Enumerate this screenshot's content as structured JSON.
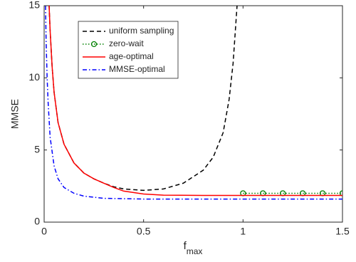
{
  "chart_data": {
    "type": "line",
    "xlabel": "f",
    "xlabel_subscript": "max",
    "ylabel": "MMSE",
    "xlim": [
      0,
      1.5
    ],
    "xticks": [
      0,
      0.5,
      1,
      1.5
    ],
    "ylim": [
      0,
      15
    ],
    "yticks": [
      0,
      5,
      10,
      15
    ],
    "legend": "upper left",
    "series": [
      {
        "name": "uniform sampling",
        "color": "#000000",
        "style": "dashed",
        "x": [
          0.025,
          0.03,
          0.04,
          0.05,
          0.07,
          0.1,
          0.15,
          0.2,
          0.25,
          0.3,
          0.35,
          0.4,
          0.5,
          0.6,
          0.7,
          0.8,
          0.85,
          0.9,
          0.93,
          0.95,
          0.97
        ],
        "values": [
          15,
          13.3,
          10.8,
          9.0,
          6.9,
          5.4,
          4.1,
          3.4,
          3.0,
          2.7,
          2.45,
          2.3,
          2.2,
          2.3,
          2.7,
          3.6,
          4.5,
          6.2,
          8.5,
          11,
          15
        ]
      },
      {
        "name": "zero-wait",
        "color": "#008000",
        "style": "dotted",
        "marker": "circle",
        "x": [
          1,
          1.1,
          1.2,
          1.3,
          1.4,
          1.5
        ],
        "values": [
          2,
          2,
          2,
          2,
          2,
          2
        ]
      },
      {
        "name": "age-optimal",
        "color": "#ff0000",
        "style": "solid",
        "x": [
          0.025,
          0.03,
          0.04,
          0.05,
          0.07,
          0.1,
          0.15,
          0.2,
          0.25,
          0.3,
          0.35,
          0.4,
          0.5,
          0.6,
          0.8,
          1,
          1.2,
          1.5
        ],
        "values": [
          15,
          13.3,
          10.8,
          9.0,
          6.9,
          5.4,
          4.1,
          3.4,
          3.0,
          2.7,
          2.4,
          2.15,
          1.95,
          1.87,
          1.85,
          1.85,
          1.85,
          1.85
        ]
      },
      {
        "name": "MMSE-optimal",
        "color": "#0000ff",
        "style": "dashdot",
        "x": [
          0.007,
          0.01,
          0.015,
          0.02,
          0.03,
          0.05,
          0.07,
          0.1,
          0.15,
          0.2,
          0.3,
          0.5,
          1,
          1.5
        ],
        "values": [
          15,
          12.5,
          10,
          8.3,
          5.9,
          3.9,
          3.0,
          2.4,
          2.0,
          1.8,
          1.65,
          1.6,
          1.6,
          1.6
        ]
      }
    ]
  }
}
